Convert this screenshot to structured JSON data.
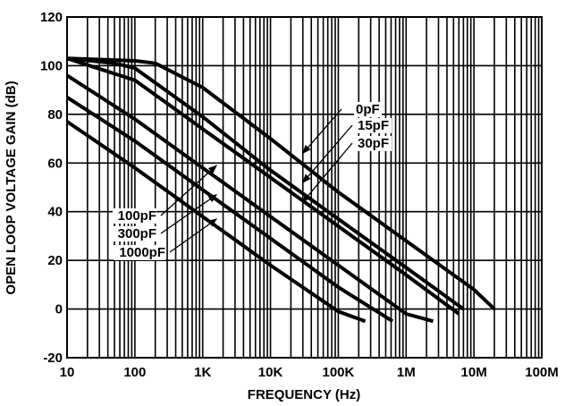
{
  "chart_data": {
    "type": "line",
    "title": "",
    "xlabel": "FREQUENCY (Hz)",
    "ylabel": "OPEN LOOP VOLTAGE GAIN (dB)",
    "xscale": "log",
    "xlim": [
      10,
      100000000
    ],
    "ylim": [
      -20,
      120
    ],
    "grid": true,
    "legend": "inline labels with pointer arrows",
    "x_ticks": [
      {
        "value": 10,
        "label": "10"
      },
      {
        "value": 100,
        "label": "100"
      },
      {
        "value": 1000,
        "label": "1K"
      },
      {
        "value": 10000,
        "label": "10K"
      },
      {
        "value": 100000,
        "label": "100K"
      },
      {
        "value": 1000000,
        "label": "1M"
      },
      {
        "value": 10000000,
        "label": "10M"
      },
      {
        "value": 100000000,
        "label": "100M"
      }
    ],
    "y_ticks": [
      {
        "value": -20,
        "label": "-20"
      },
      {
        "value": 0,
        "label": "0"
      },
      {
        "value": 20,
        "label": "20"
      },
      {
        "value": 40,
        "label": "40"
      },
      {
        "value": 60,
        "label": "60"
      },
      {
        "value": 80,
        "label": "80"
      },
      {
        "value": 100,
        "label": "100"
      },
      {
        "value": 120,
        "label": "120"
      }
    ],
    "series": [
      {
        "name": "0pF",
        "x": [
          10,
          100,
          200,
          1000,
          10000,
          100000,
          1000000,
          10000000,
          20000000
        ],
        "y": [
          103,
          102,
          101,
          91,
          70,
          48,
          28,
          8,
          0
        ]
      },
      {
        "name": "15pF",
        "x": [
          10,
          50,
          100,
          1000,
          10000,
          100000,
          1000000,
          7000000
        ],
        "y": [
          103,
          101,
          99,
          79,
          57,
          37,
          17,
          0
        ]
      },
      {
        "name": "30pF",
        "x": [
          10,
          100,
          1000,
          10000,
          100000,
          1000000,
          6000000
        ],
        "y": [
          103,
          94,
          74,
          54,
          34,
          14,
          -2
        ]
      },
      {
        "name": "100pF",
        "x": [
          10,
          100,
          1000,
          10000,
          100000,
          1000000,
          2500000
        ],
        "y": [
          96,
          78,
          58,
          38,
          18,
          -2,
          -5
        ]
      },
      {
        "name": "300pF",
        "x": [
          10,
          100,
          1000,
          10000,
          100000,
          630000
        ],
        "y": [
          87,
          69,
          49,
          29,
          9,
          -5
        ]
      },
      {
        "name": "1000pF",
        "x": [
          10,
          100,
          1000,
          10000,
          100000,
          250000
        ],
        "y": [
          77,
          58,
          38,
          18,
          -1,
          -5
        ]
      }
    ],
    "annotations": [
      {
        "text": "0pF",
        "arrow_to": {
          "x": 30000,
          "y": 64
        }
      },
      {
        "text": "15pF",
        "arrow_to": {
          "x": 30000,
          "y": 52
        }
      },
      {
        "text": "30pF",
        "arrow_to": {
          "x": 30000,
          "y": 44
        }
      },
      {
        "text": "100pF",
        "arrow_to": {
          "x": 1600,
          "y": 59
        }
      },
      {
        "text": "300pF",
        "arrow_to": {
          "x": 1600,
          "y": 47
        }
      },
      {
        "text": "1000pF",
        "arrow_to": {
          "x": 1600,
          "y": 37
        }
      }
    ]
  }
}
